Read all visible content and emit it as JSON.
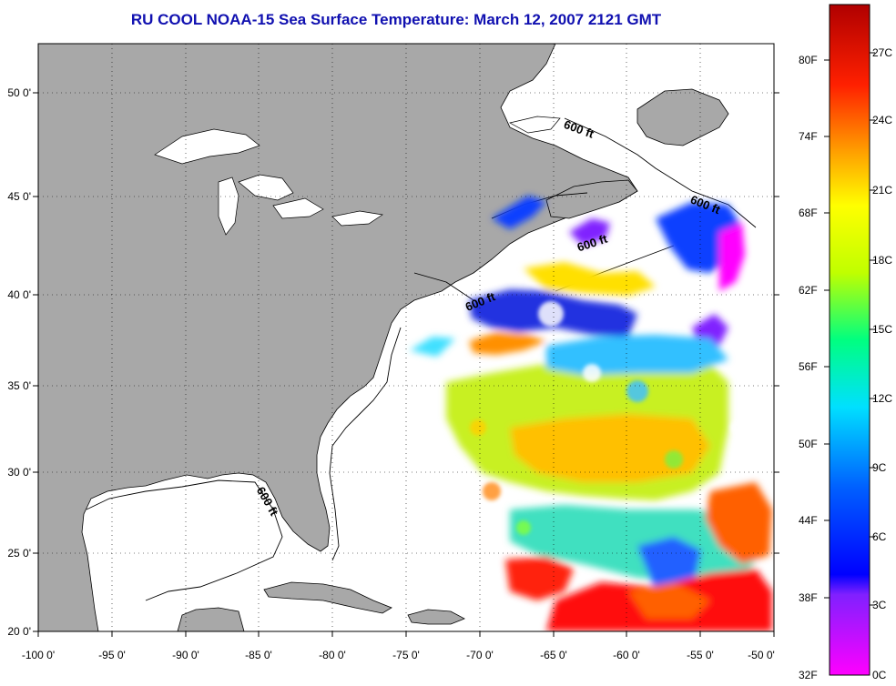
{
  "title": "RU COOL  NOAA-15  Sea Surface Temperature:  March 12, 2007 2121 GMT",
  "lon_labels": [
    "-100 0'",
    "-95 0'",
    "-90 0'",
    "-85 0'",
    "-80 0'",
    "-75 0'",
    "-70 0'",
    "-65 0'",
    "-60 0'",
    "-55 0'",
    "-50 0'"
  ],
  "lat_labels": [
    "50 0'",
    "45 0'",
    "40 0'",
    "35 0'",
    "30 0'",
    "25 0'",
    "20 0'"
  ],
  "contour_labels": [
    "600 ft",
    "600 ft",
    "600 ft",
    "600 ft",
    "600 ft"
  ],
  "colorbar": {
    "fahrenheit_labels": [
      "80F",
      "74F",
      "68F",
      "62F",
      "56F",
      "50F",
      "44F",
      "38F",
      "32F"
    ],
    "celsius_labels": [
      "27C",
      "24C",
      "21C",
      "18C",
      "15C",
      "12C",
      "9C",
      "6C",
      "3C",
      "0C"
    ]
  },
  "colors": {
    "land": "#a8a8a8",
    "water": "#ffffff",
    "title": "#1010b0"
  }
}
